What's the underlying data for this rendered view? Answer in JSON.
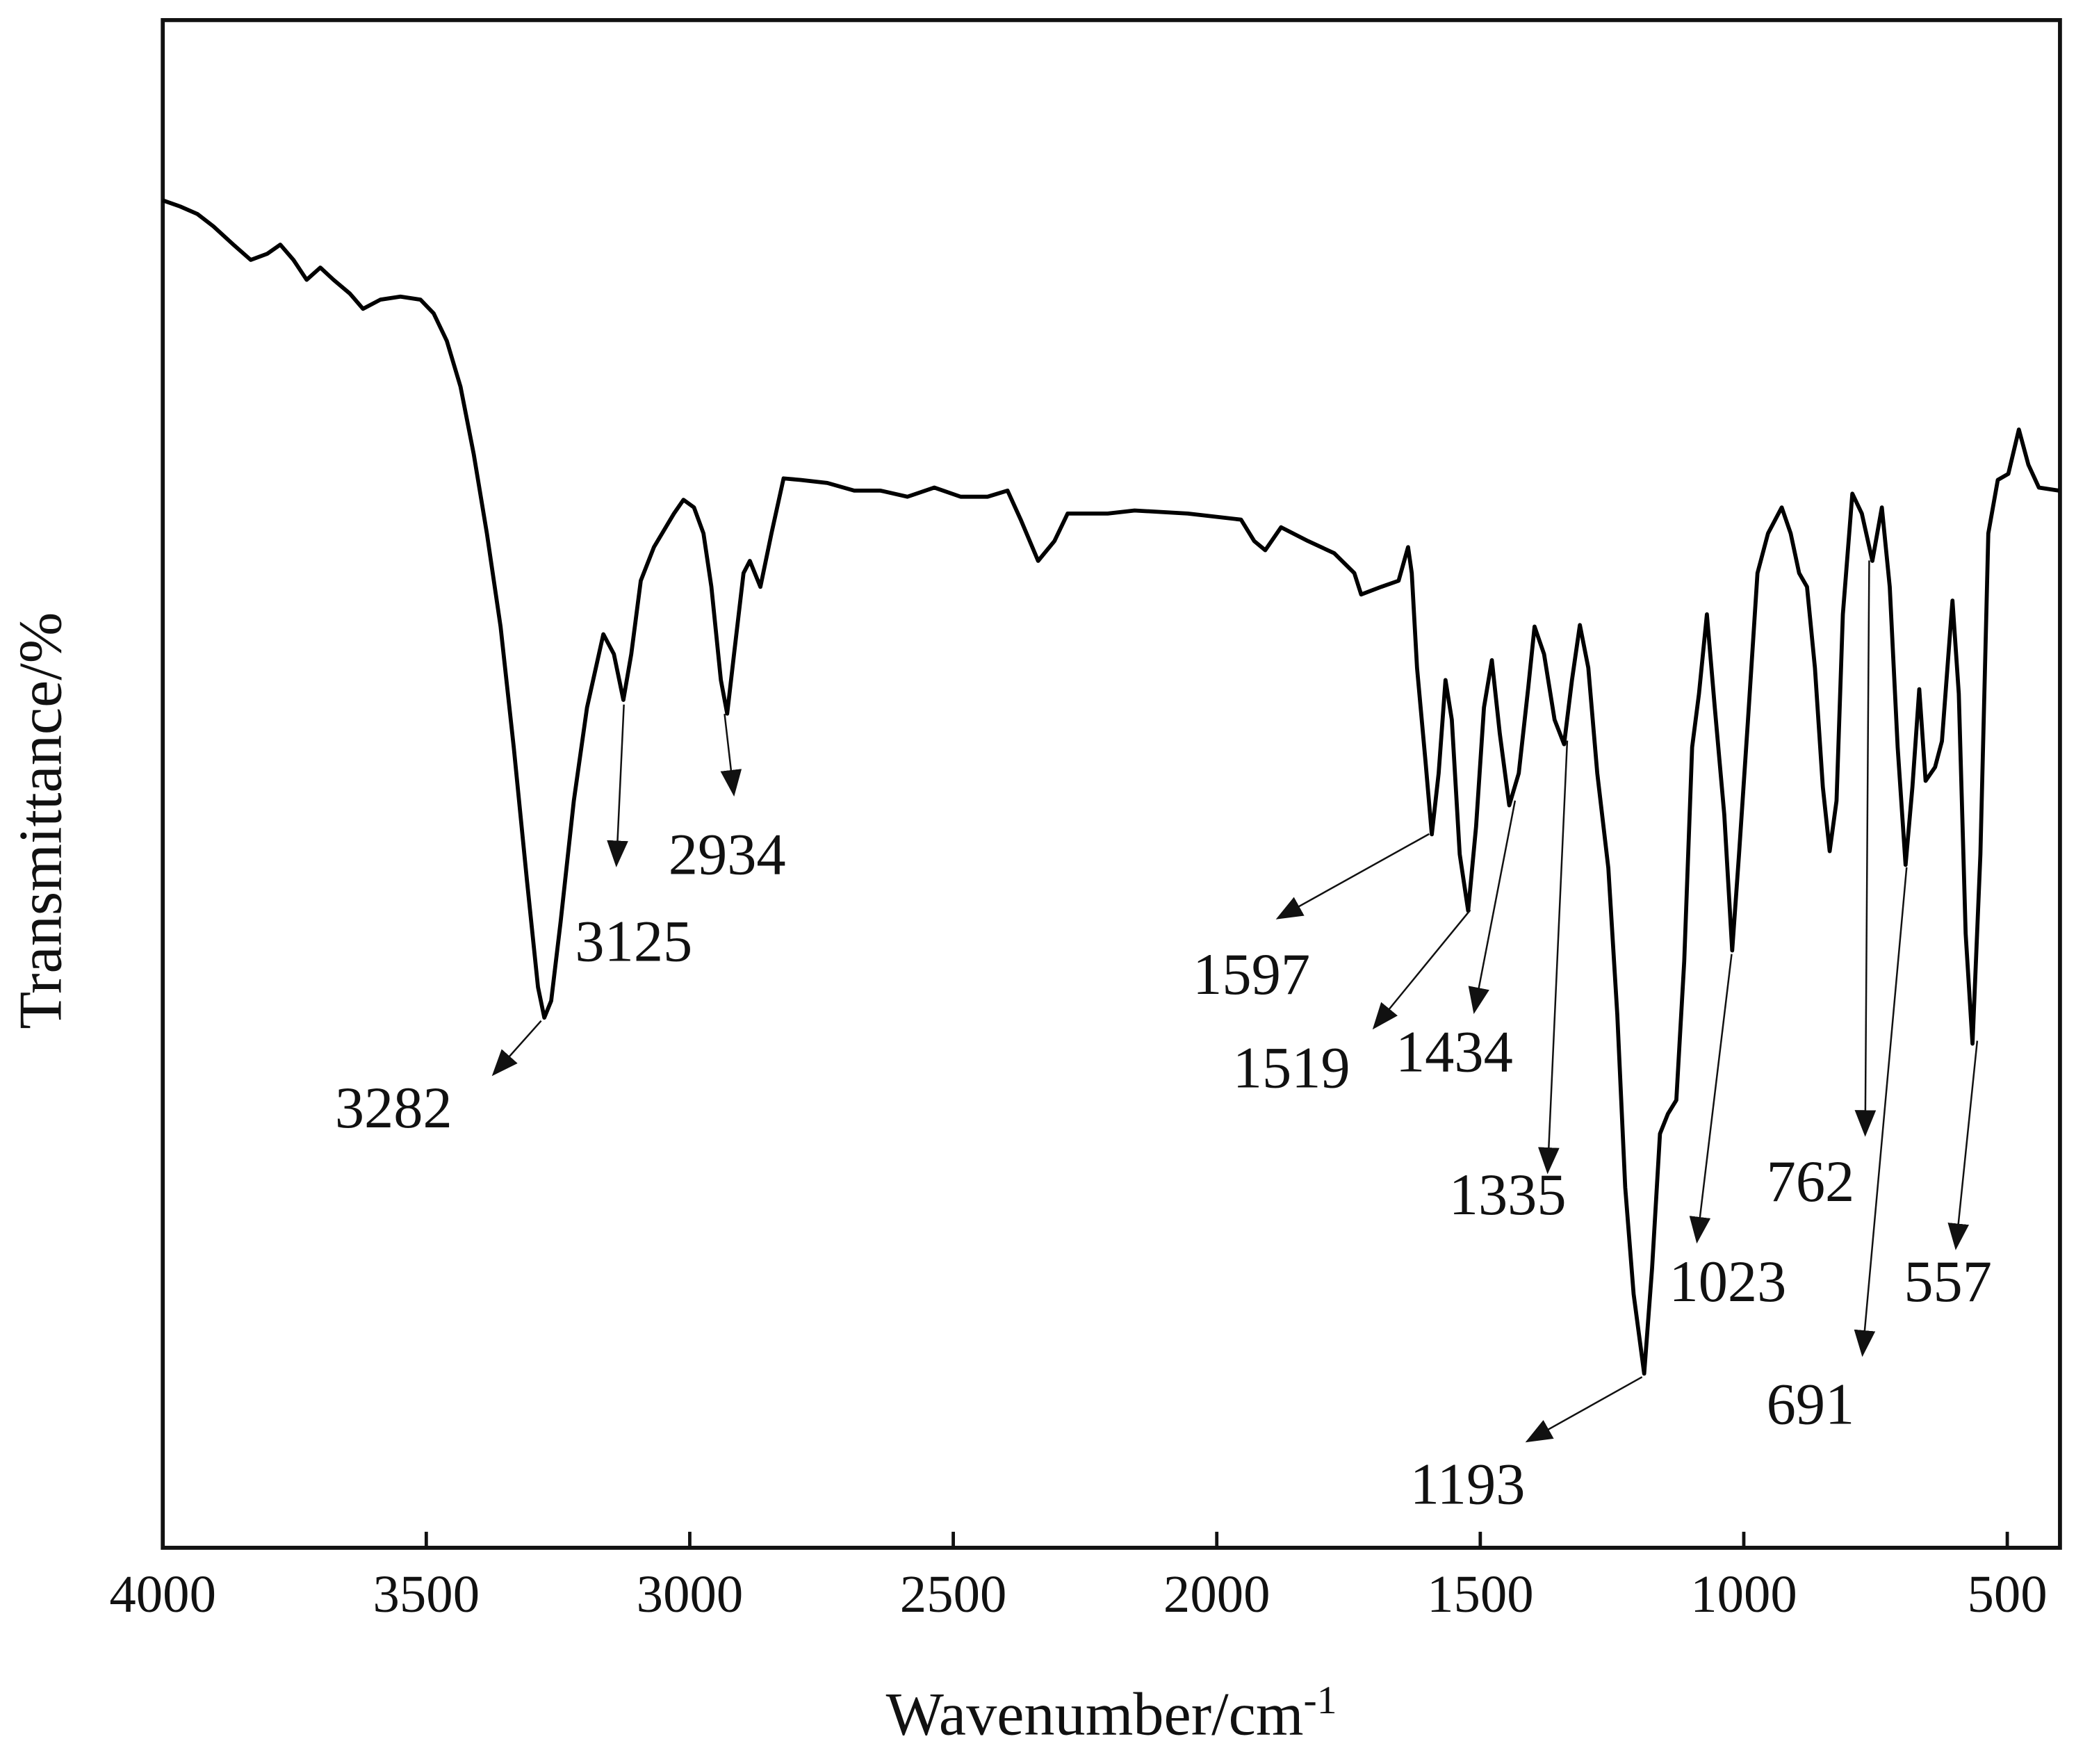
{
  "chart_data": {
    "type": "line",
    "xlabel": "Wavenumber/cm",
    "xlabel_superscript": "-1",
    "ylabel": "Transmittance/%",
    "xlim": [
      4000,
      400
    ],
    "ylim": [
      0,
      100
    ],
    "xticks": [
      4000,
      3500,
      3000,
      2500,
      2000,
      1500,
      1000,
      500
    ],
    "grid": false,
    "x": [
      4000,
      3967,
      3934,
      3904,
      3866,
      3833,
      3802,
      3777,
      3752,
      3727,
      3701,
      3676,
      3645,
      3620,
      3587,
      3549,
      3511,
      3486,
      3461,
      3435,
      3410,
      3385,
      3359,
      3334,
      3309,
      3288,
      3276,
      3263,
      3245,
      3220,
      3195,
      3164,
      3144,
      3126,
      3111,
      3093,
      3068,
      3030,
      3012,
      2992,
      2974,
      2959,
      2941,
      2929,
      2916,
      2898,
      2886,
      2866,
      2845,
      2822,
      2790,
      2739,
      2688,
      2638,
      2587,
      2536,
      2486,
      2435,
      2397,
      2372,
      2339,
      2308,
      2283,
      2207,
      2156,
      2055,
      1954,
      1929,
      1908,
      1878,
      1827,
      1777,
      1739,
      1726,
      1688,
      1655,
      1637,
      1630,
      1620,
      1604,
      1592,
      1579,
      1566,
      1554,
      1539,
      1523,
      1508,
      1493,
      1478,
      1463,
      1445,
      1427,
      1409,
      1397,
      1379,
      1359,
      1341,
      1326,
      1311,
      1295,
      1278,
      1257,
      1240,
      1225,
      1209,
      1189,
      1174,
      1159,
      1144,
      1128,
      1113,
      1098,
      1085,
      1070,
      1055,
      1037,
      1022,
      1009,
      992,
      974,
      954,
      928,
      911,
      895,
      880,
      865,
      850,
      837,
      824,
      812,
      794,
      776,
      756,
      738,
      723,
      708,
      693,
      680,
      667,
      655,
      637,
      624,
      604,
      592,
      579,
      566,
      551,
      536,
      518,
      498,
      478,
      460,
      440,
      402
    ],
    "series": [
      {
        "color": "#000000",
        "values": [
          88.2,
          87.8,
          87.3,
          86.5,
          85.3,
          84.3,
          84.7,
          85.3,
          84.3,
          83.0,
          83.8,
          83.0,
          82.1,
          81.1,
          81.7,
          81.9,
          81.7,
          80.8,
          79.0,
          76.0,
          71.6,
          66.4,
          60.3,
          52.4,
          43.7,
          36.7,
          34.7,
          35.8,
          41.0,
          48.9,
          55.0,
          59.8,
          58.5,
          55.5,
          58.5,
          63.3,
          65.5,
          67.7,
          68.6,
          68.1,
          66.4,
          62.9,
          56.8,
          54.6,
          58.5,
          63.8,
          64.6,
          62.9,
          66.4,
          70.0,
          69.9,
          69.7,
          69.2,
          69.2,
          68.8,
          69.4,
          68.8,
          68.8,
          69.2,
          67.3,
          64.6,
          65.9,
          67.7,
          67.7,
          67.9,
          67.7,
          67.3,
          65.9,
          65.3,
          66.8,
          65.9,
          65.1,
          63.8,
          62.4,
          62.9,
          63.3,
          65.5,
          63.8,
          57.6,
          51.5,
          46.7,
          50.7,
          56.8,
          54.2,
          45.4,
          41.7,
          47.2,
          55.0,
          58.1,
          53.3,
          48.6,
          50.7,
          56.3,
          60.3,
          58.5,
          54.2,
          52.6,
          56.8,
          60.4,
          57.6,
          50.7,
          44.5,
          34.9,
          23.6,
          16.6,
          11.4,
          18.3,
          27.1,
          28.4,
          29.3,
          38.4,
          52.4,
          55.9,
          61.1,
          55.0,
          48.0,
          39.1,
          45.4,
          54.2,
          63.8,
          66.4,
          68.1,
          66.4,
          63.8,
          62.9,
          57.6,
          49.8,
          45.6,
          48.9,
          61.1,
          69.0,
          67.7,
          64.6,
          68.1,
          62.9,
          52.4,
          44.7,
          49.8,
          56.2,
          50.2,
          51.1,
          52.8,
          62.0,
          55.9,
          40.2,
          33.0,
          45.4,
          66.4,
          69.9,
          70.3,
          73.2,
          70.9,
          69.4,
          69.2
        ]
      }
    ],
    "annotations": [
      3282,
      3125,
      2934,
      1597,
      1519,
      1434,
      1335,
      1193,
      1023,
      762,
      691,
      557
    ]
  }
}
